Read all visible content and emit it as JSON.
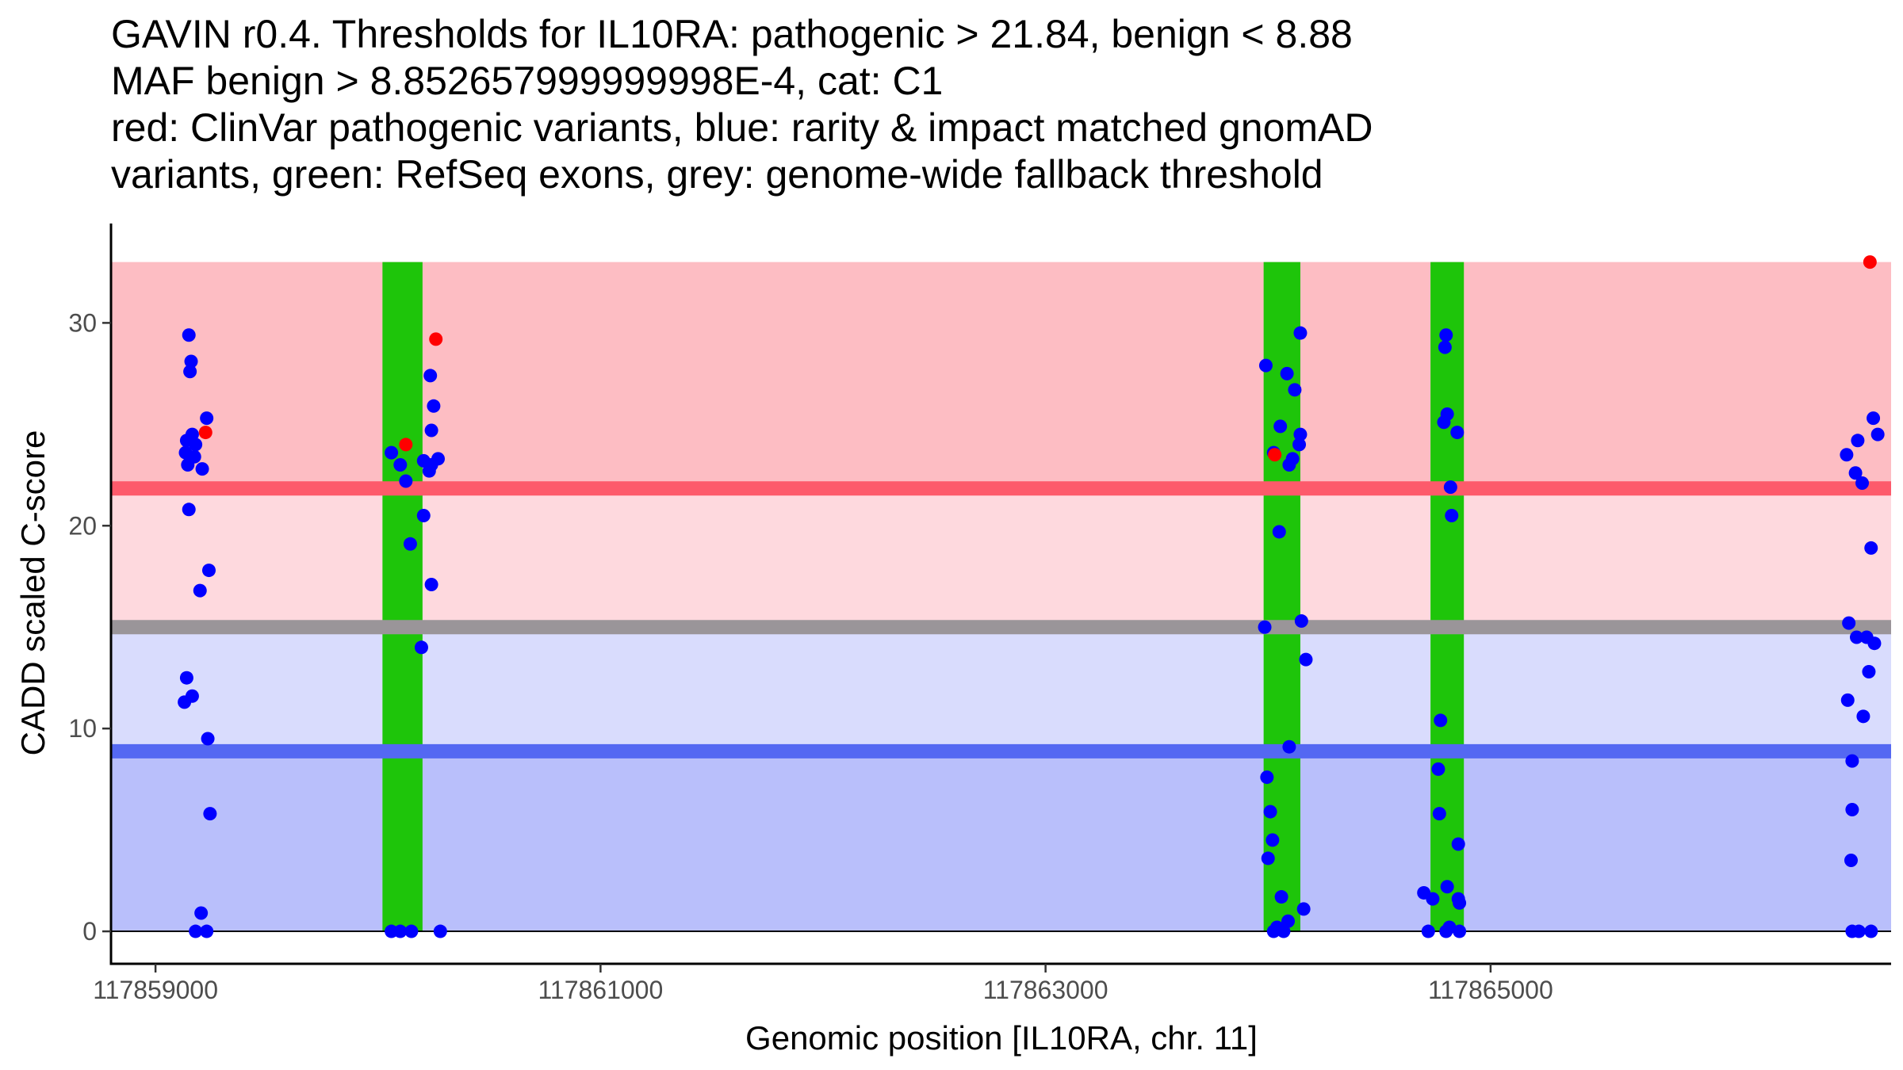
{
  "title_lines": [
    "GAVIN r0.4. Thresholds for IL10RA: pathogenic > 21.84, benign < 8.88",
    "MAF benign > 8.852657999999998E-4, cat: C1",
    "red: ClinVar pathogenic variants, blue: rarity & impact matched gnomAD",
    "variants, green: RefSeq exons, grey: genome-wide fallback threshold"
  ],
  "chart_data": {
    "type": "scatter",
    "xlabel": "Genomic position [IL10RA, chr. 11]",
    "ylabel": "CADD scaled C-score",
    "xlim": [
      117858800,
      117866800
    ],
    "ylim": [
      -1.6,
      34.9
    ],
    "x_ticks": [
      117859000,
      117861000,
      117863000,
      117865000
    ],
    "y_ticks": [
      0,
      10,
      20,
      30
    ],
    "x_tick_labels": [
      "117859000",
      "117861000",
      "117863000",
      "117865000"
    ],
    "y_tick_labels": [
      "0",
      "10",
      "20",
      "30"
    ],
    "regions": [
      {
        "name": "pathogenic-region",
        "y0": 21.84,
        "y1": 33.0,
        "color": "#fdbdc3"
      },
      {
        "name": "grey-to-pathogenic-region",
        "y0": 15.0,
        "y1": 21.84,
        "color": "#fed9de"
      },
      {
        "name": "benign-to-grey-region",
        "y0": 8.88,
        "y1": 15.0,
        "color": "#d9dcfd"
      },
      {
        "name": "benign-region",
        "y0": 0,
        "y1": 8.88,
        "color": "#b9bffb"
      }
    ],
    "thresholds": [
      {
        "name": "pathogenic-threshold",
        "value": 21.84,
        "color": "#fd5a6b"
      },
      {
        "name": "fallback-threshold",
        "value": 15.0,
        "color": "#9a9599"
      },
      {
        "name": "benign-threshold",
        "value": 8.88,
        "color": "#5468f2"
      }
    ],
    "exons": [
      {
        "start": 117860020,
        "end": 117860200
      },
      {
        "start": 117863980,
        "end": 117864145
      },
      {
        "start": 117864730,
        "end": 117864880
      }
    ],
    "colors": {
      "exon": "#1ec50a",
      "pathogenic": "#ff0000",
      "gnomad": "#0000ff",
      "axis": "#000000",
      "baseline": "#000000"
    },
    "series": [
      {
        "name": "gnomAD variants",
        "color": "#0000ff",
        "points": [
          [
            117859150,
            29.4
          ],
          [
            117859160,
            28.1
          ],
          [
            117859155,
            27.6
          ],
          [
            117859230,
            25.3
          ],
          [
            117859165,
            24.5
          ],
          [
            117859140,
            24.2
          ],
          [
            117859180,
            24.0
          ],
          [
            117859135,
            23.6
          ],
          [
            117859175,
            23.4
          ],
          [
            117859145,
            23.0
          ],
          [
            117859210,
            22.8
          ],
          [
            117859150,
            20.8
          ],
          [
            117859240,
            17.8
          ],
          [
            117859200,
            16.8
          ],
          [
            117859140,
            12.5
          ],
          [
            117859165,
            11.6
          ],
          [
            117859130,
            11.3
          ],
          [
            117859235,
            9.5
          ],
          [
            117859245,
            5.8
          ],
          [
            117859205,
            0.9
          ],
          [
            117859180,
            0.0
          ],
          [
            117859230,
            0.0
          ],
          [
            117860235,
            27.4
          ],
          [
            117860250,
            25.9
          ],
          [
            117860240,
            24.7
          ],
          [
            117860060,
            23.6
          ],
          [
            117860270,
            23.3
          ],
          [
            117860205,
            23.2
          ],
          [
            117860240,
            23.0
          ],
          [
            117860100,
            23.0
          ],
          [
            117860230,
            22.7
          ],
          [
            117860125,
            22.2
          ],
          [
            117860205,
            20.5
          ],
          [
            117860145,
            19.1
          ],
          [
            117860240,
            17.1
          ],
          [
            117860195,
            14.0
          ],
          [
            117860060,
            0.0
          ],
          [
            117860100,
            0.0
          ],
          [
            117860150,
            0.0
          ],
          [
            117860280,
            0.0
          ],
          [
            117864145,
            29.5
          ],
          [
            117863990,
            27.9
          ],
          [
            117864085,
            27.5
          ],
          [
            117864120,
            26.7
          ],
          [
            117864055,
            24.9
          ],
          [
            117864145,
            24.5
          ],
          [
            117864140,
            24.0
          ],
          [
            117864025,
            23.6
          ],
          [
            117864110,
            23.3
          ],
          [
            117864095,
            23.0
          ],
          [
            117864050,
            19.7
          ],
          [
            117863985,
            15.0
          ],
          [
            117864150,
            15.3
          ],
          [
            117864170,
            13.4
          ],
          [
            117864095,
            9.1
          ],
          [
            117863995,
            7.6
          ],
          [
            117864010,
            5.9
          ],
          [
            117864020,
            4.5
          ],
          [
            117864000,
            3.6
          ],
          [
            117864060,
            1.7
          ],
          [
            117864160,
            1.1
          ],
          [
            117864090,
            0.5
          ],
          [
            117864040,
            0.2
          ],
          [
            117864025,
            0.0
          ],
          [
            117864070,
            0.0
          ],
          [
            117864800,
            29.4
          ],
          [
            117864795,
            28.8
          ],
          [
            117864805,
            25.5
          ],
          [
            117864790,
            25.1
          ],
          [
            117864850,
            24.6
          ],
          [
            117864820,
            21.9
          ],
          [
            117864825,
            20.5
          ],
          [
            117864775,
            10.4
          ],
          [
            117864765,
            8.0
          ],
          [
            117864770,
            5.8
          ],
          [
            117864855,
            4.3
          ],
          [
            117864700,
            1.9
          ],
          [
            117864740,
            1.6
          ],
          [
            117864805,
            2.2
          ],
          [
            117864855,
            1.6
          ],
          [
            117864860,
            1.4
          ],
          [
            117864720,
            0.0
          ],
          [
            117864800,
            0.0
          ],
          [
            117864815,
            0.2
          ],
          [
            117864860,
            0.0
          ],
          [
            117866600,
            23.5
          ],
          [
            117866640,
            22.6
          ],
          [
            117866720,
            25.3
          ],
          [
            117866650,
            24.2
          ],
          [
            117866740,
            24.5
          ],
          [
            117866670,
            22.1
          ],
          [
            117866710,
            18.9
          ],
          [
            117866610,
            15.2
          ],
          [
            117866645,
            14.5
          ],
          [
            117866690,
            14.5
          ],
          [
            117866725,
            14.2
          ],
          [
            117866700,
            12.8
          ],
          [
            117866605,
            11.4
          ],
          [
            117866675,
            10.6
          ],
          [
            117866625,
            8.4
          ],
          [
            117866625,
            6.0
          ],
          [
            117866620,
            3.5
          ],
          [
            117866625,
            0.0
          ],
          [
            117866655,
            0.0
          ],
          [
            117866710,
            0.0
          ]
        ]
      },
      {
        "name": "ClinVar pathogenic variants",
        "color": "#ff0000",
        "points": [
          [
            117859225,
            24.6
          ],
          [
            117860260,
            29.2
          ],
          [
            117860125,
            24.0
          ],
          [
            117864030,
            23.5
          ],
          [
            117866705,
            33.0
          ]
        ]
      }
    ]
  }
}
